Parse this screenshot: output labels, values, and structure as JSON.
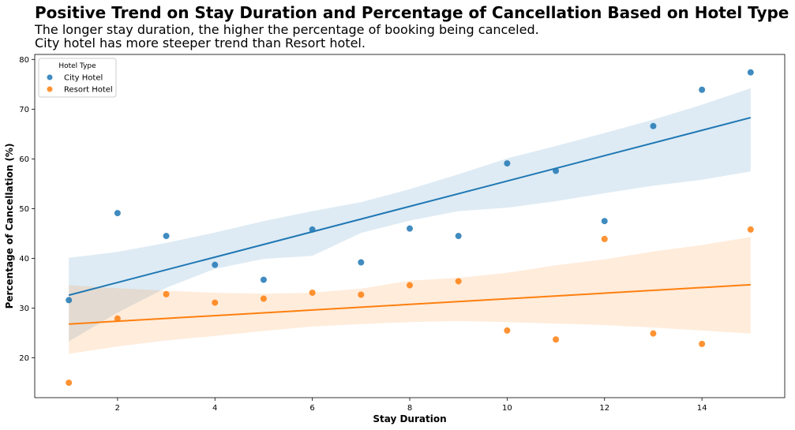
{
  "chart_data": {
    "type": "scatter",
    "title": "Positive Trend on Stay Duration and Percentage of Cancellation Based on Hotel Type",
    "subtitle_lines": [
      "The longer stay duration, the higher the percentage of booking being canceled.",
      "City hotel has more steeper trend than Resort hotel."
    ],
    "xlabel": "Stay Duration",
    "ylabel": "Percentage of Cancellation (%)",
    "xlim": [
      0.3,
      15.7
    ],
    "ylim": [
      12,
      81
    ],
    "xticks": [
      2,
      4,
      6,
      8,
      10,
      12,
      14
    ],
    "yticks": [
      20,
      30,
      40,
      50,
      60,
      70,
      80
    ],
    "grid": false,
    "legend": {
      "title": "Hotel Type",
      "position": "top-left"
    },
    "series": [
      {
        "name": "City Hotel",
        "color": "#1f77b4",
        "x": [
          1,
          2,
          3,
          4,
          5,
          6,
          7,
          8,
          9,
          10,
          11,
          12,
          13,
          14,
          15
        ],
        "y": [
          31.6,
          49.1,
          44.5,
          38.7,
          35.7,
          45.8,
          39.2,
          46.0,
          44.5,
          59.1,
          57.6,
          47.5,
          66.6,
          73.9,
          77.4
        ],
        "regression": {
          "x": [
            1,
            15
          ],
          "y": [
            32.6,
            68.3
          ]
        },
        "ci": {
          "x": [
            1,
            2,
            3,
            4,
            5,
            6,
            7,
            8,
            9,
            10,
            11,
            12,
            13,
            14,
            15
          ],
          "lower": [
            23.3,
            29.1,
            34.1,
            37.9,
            39.9,
            40.5,
            45.1,
            47.6,
            49.5,
            50.2,
            51.5,
            53.1,
            54.6,
            55.8,
            57.5
          ],
          "upper": [
            40.1,
            41.3,
            43.1,
            45.2,
            47.5,
            49.5,
            51.3,
            53.9,
            56.9,
            60.1,
            62.6,
            65.2,
            67.9,
            70.9,
            74.2
          ]
        }
      },
      {
        "name": "Resort Hotel",
        "color": "#ff7f0e",
        "x": [
          1,
          2,
          3,
          4,
          5,
          6,
          7,
          8,
          9,
          10,
          11,
          12,
          13,
          14,
          15
        ],
        "y": [
          15.0,
          27.9,
          32.8,
          31.1,
          31.9,
          33.1,
          32.7,
          34.6,
          35.4,
          25.5,
          23.7,
          43.9,
          24.9,
          22.8,
          45.8
        ],
        "regression": {
          "x": [
            1,
            15
          ],
          "y": [
            26.8,
            34.7
          ]
        },
        "ci": {
          "x": [
            1,
            2,
            3,
            4,
            5,
            6,
            7,
            8,
            9,
            10,
            11,
            12,
            13,
            14,
            15
          ],
          "lower": [
            20.8,
            22.3,
            23.5,
            24.4,
            25.4,
            26.3,
            26.8,
            27.2,
            27.4,
            27.2,
            26.9,
            26.6,
            26.1,
            25.5,
            24.9
          ],
          "upper": [
            34.6,
            34.0,
            33.5,
            33.1,
            32.9,
            33.1,
            33.9,
            35.5,
            36.1,
            37.1,
            38.6,
            39.8,
            41.4,
            42.7,
            44.3
          ]
        }
      }
    ]
  }
}
